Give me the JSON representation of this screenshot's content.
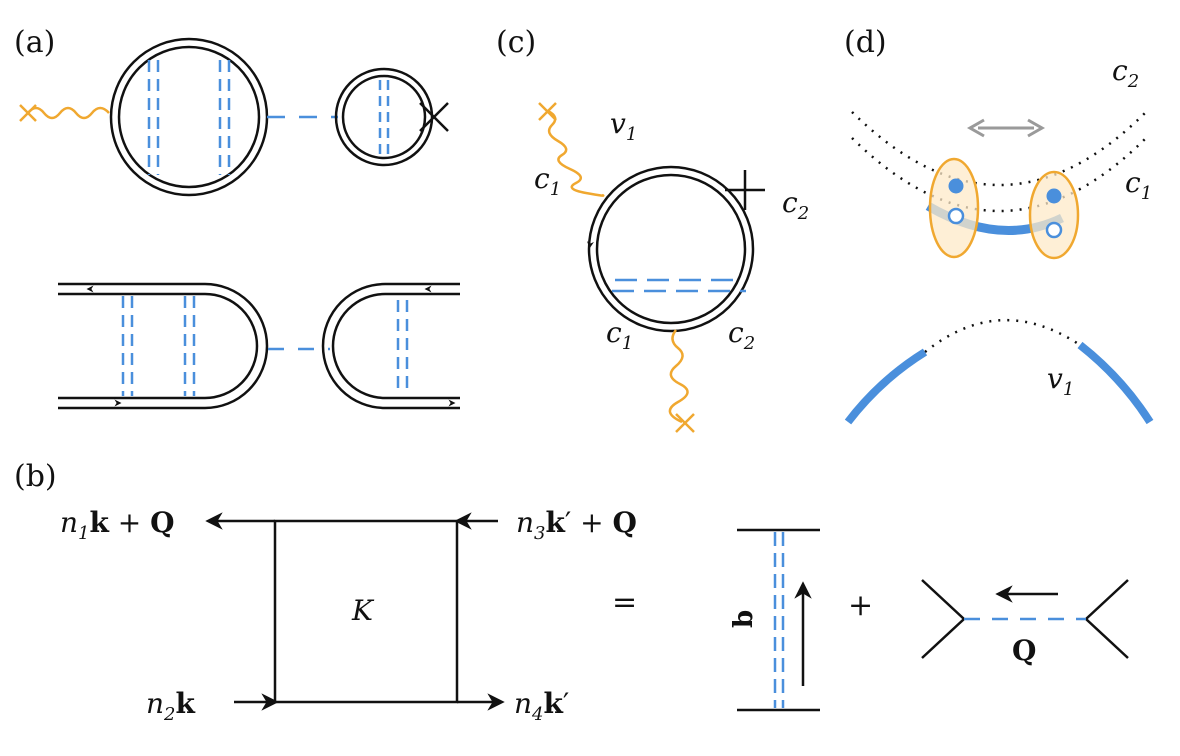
{
  "colors": {
    "line": "#111111",
    "interaction": "#4a8fdc",
    "photon": "#f0a830",
    "guide": "#9a9a9a",
    "exciton_fill": "#fde9c8"
  },
  "panels": {
    "a": {
      "label": "(a)"
    },
    "b": {
      "label": "(b)",
      "kernel": "K",
      "equals": "=",
      "plus": "+",
      "exchange_label": "b",
      "momentum_label": "Q",
      "top_left": {
        "prefix": "n",
        "sub": "1",
        "bold_k": "k",
        "tail": " + ",
        "bold_Q": "Q"
      },
      "top_right": {
        "prefix": "n",
        "sub": "3",
        "bold_k": "k",
        "prime": "′",
        "tail": " + ",
        "bold_Q": "Q"
      },
      "bottom_left": {
        "prefix": "n",
        "sub": "2",
        "bold_k": "k"
      },
      "bottom_right": {
        "prefix": "n",
        "sub": "4",
        "bold_k": "k",
        "prime": "′"
      }
    },
    "c": {
      "label": "(c)",
      "v1": {
        "base": "v",
        "sub": "1"
      },
      "c1_top": {
        "base": "c",
        "sub": "1"
      },
      "c2_right": {
        "base": "c",
        "sub": "2"
      },
      "c1_bottom": {
        "base": "c",
        "sub": "1"
      },
      "c2_bottom": {
        "base": "c",
        "sub": "2"
      }
    },
    "d": {
      "label": "(d)",
      "c2": {
        "base": "c",
        "sub": "2"
      },
      "c1": {
        "base": "c",
        "sub": "1"
      },
      "v1": {
        "base": "v",
        "sub": "1"
      }
    }
  }
}
